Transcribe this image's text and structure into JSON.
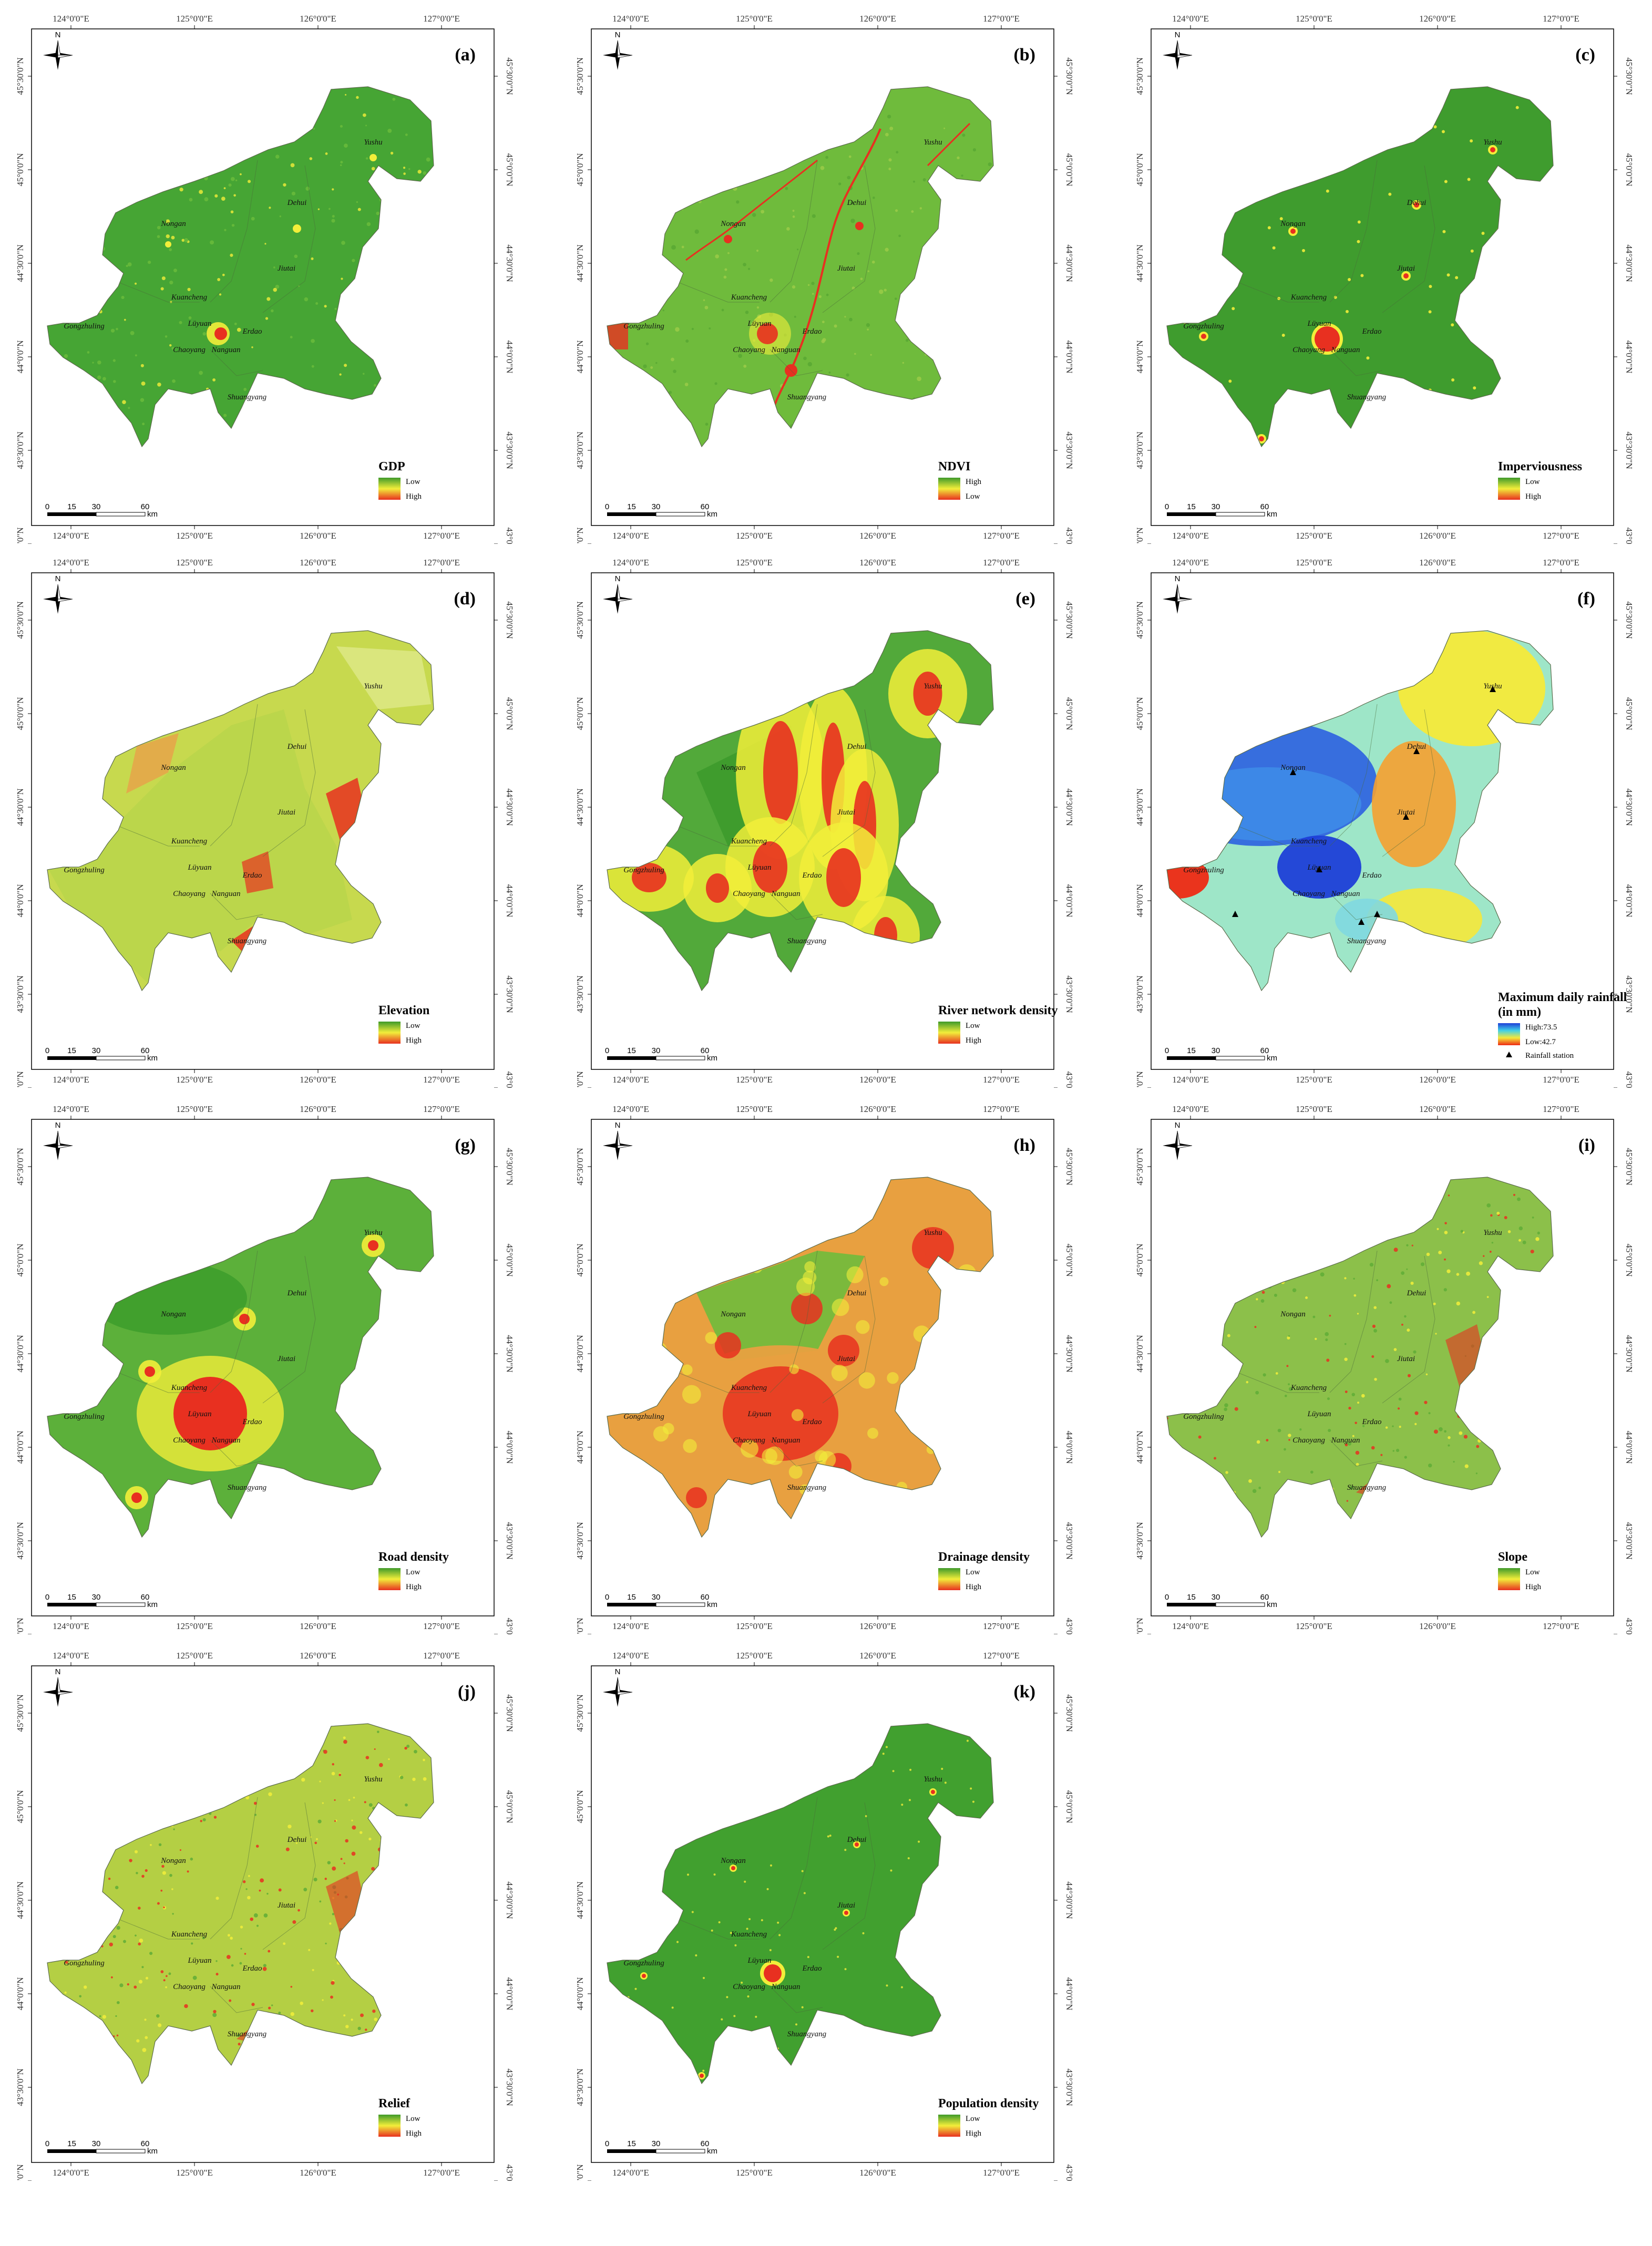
{
  "axes": {
    "lon_ticks": [
      "124°0'0\"E",
      "125°0'0\"E",
      "126°0'0\"E",
      "127°0'0\"E"
    ],
    "lat_ticks": [
      "45°30'0\"N",
      "45°0'0\"N",
      "44°30'0\"N",
      "44°0'0\"N",
      "43°30'0\"N",
      "43°0'0\"N"
    ]
  },
  "compass_label": "N",
  "scale_bar": {
    "ticks": [
      "0",
      "15",
      "30",
      "60"
    ],
    "unit": "km"
  },
  "places": [
    "Yushu",
    "Dehui",
    "Nongan",
    "Jiutai",
    "Kuancheng",
    "Gongzhuling",
    "Lüyuan",
    "Erdao",
    "Chaoyang",
    "Nanguan",
    "Shuangyang"
  ],
  "panels": [
    {
      "letter": "(a)",
      "legend": "GDP",
      "top": "Low",
      "bottom": "High",
      "colors": [
        "#3f9a2a",
        "#f2ee3a",
        "#e83020"
      ],
      "base": "#46a534",
      "style": "dots"
    },
    {
      "letter": "(b)",
      "legend": "NDVI",
      "top": "High",
      "bottom": "Low",
      "colors": [
        "#3f9a2a",
        "#f2ee3a",
        "#e83020"
      ],
      "base": "#6fbb3c",
      "style": "rivers"
    },
    {
      "letter": "(c)",
      "legend": "Imperviousness",
      "top": "Low",
      "bottom": "High",
      "colors": [
        "#3f9a2a",
        "#f2ee3a",
        "#e83020"
      ],
      "base": "#3f9c2e",
      "style": "spots"
    },
    {
      "letter": "(d)",
      "legend": "Elevation",
      "top": "Low",
      "bottom": "High",
      "colors": [
        "#3f9a2a",
        "#f2ee3a",
        "#e83020"
      ],
      "base": "#c7d94e",
      "style": "elev"
    },
    {
      "letter": "(e)",
      "legend": "River network density",
      "top": "Low",
      "bottom": "High",
      "colors": [
        "#3f9a2a",
        "#f2ee3a",
        "#e83020"
      ],
      "base": "#52a93a",
      "style": "river"
    },
    {
      "letter": "(f)",
      "legend": "Maximum daily rainfall",
      "legend2": "(in mm)",
      "top": "High:73.5",
      "bottom": "Low:42.7",
      "extra": "Rainfall station",
      "colors": [
        "#1e3fd8",
        "#3fd0e8",
        "#f5e83a",
        "#ee2a14"
      ],
      "base": "#f3f07a",
      "style": "rain"
    },
    {
      "letter": "(g)",
      "legend": "Road density",
      "top": "Low",
      "bottom": "High",
      "colors": [
        "#3f9a2a",
        "#f2ee3a",
        "#e83020"
      ],
      "base": "#5cb03a",
      "style": "road"
    },
    {
      "letter": "(h)",
      "legend": "Drainage density",
      "top": "Low",
      "bottom": "High",
      "colors": [
        "#3f9a2a",
        "#f2ee3a",
        "#e83020"
      ],
      "base": "#e8a040",
      "style": "drain"
    },
    {
      "letter": "(i)",
      "legend": "Slope",
      "top": "Low",
      "bottom": "High",
      "colors": [
        "#3f9a2a",
        "#f2ee3a",
        "#e83020"
      ],
      "base": "#8cc04a",
      "style": "slope"
    },
    {
      "letter": "(j)",
      "legend": "Relief",
      "top": "Low",
      "bottom": "High",
      "colors": [
        "#3f9a2a",
        "#f2ee3a",
        "#e83020"
      ],
      "base": "#b4cf44",
      "style": "relief"
    },
    {
      "letter": "(k)",
      "legend": "Population density",
      "top": "Low",
      "bottom": "High",
      "colors": [
        "#3f9a2a",
        "#f2ee3a",
        "#e83020"
      ],
      "base": "#41a02f",
      "style": "pop"
    }
  ]
}
